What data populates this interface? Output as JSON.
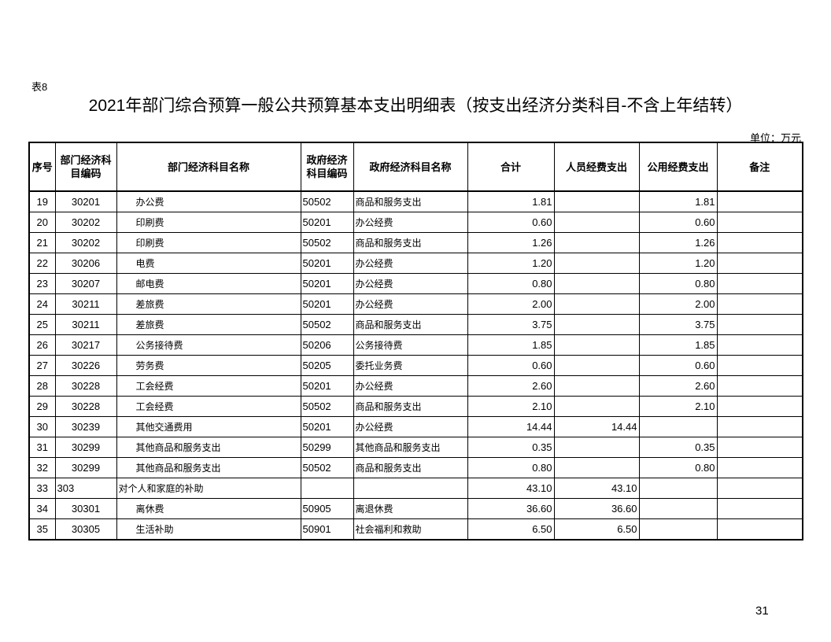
{
  "table_label": "表8",
  "title": "2021年部门综合预算一般公共预算基本支出明细表（按支出经济分类科目-不含上年结转）",
  "unit": "单位：万元",
  "headers": [
    "序号",
    "部门经济科目编码",
    "部门经济科目名称",
    "政府经济科目编码",
    "政府经济科目名称",
    "合计",
    "人员经费支出",
    "公用经费支出",
    "备注"
  ],
  "rows": [
    [
      "19",
      "30201",
      "办公费",
      "50502",
      "商品和服务支出",
      "1.81",
      "",
      "1.81",
      ""
    ],
    [
      "20",
      "30202",
      "印刷费",
      "50201",
      "办公经费",
      "0.60",
      "",
      "0.60",
      ""
    ],
    [
      "21",
      "30202",
      "印刷费",
      "50502",
      "商品和服务支出",
      "1.26",
      "",
      "1.26",
      ""
    ],
    [
      "22",
      "30206",
      "电费",
      "50201",
      "办公经费",
      "1.20",
      "",
      "1.20",
      ""
    ],
    [
      "23",
      "30207",
      "邮电费",
      "50201",
      "办公经费",
      "0.80",
      "",
      "0.80",
      ""
    ],
    [
      "24",
      "30211",
      "差旅费",
      "50201",
      "办公经费",
      "2.00",
      "",
      "2.00",
      ""
    ],
    [
      "25",
      "30211",
      "差旅费",
      "50502",
      "商品和服务支出",
      "3.75",
      "",
      "3.75",
      ""
    ],
    [
      "26",
      "30217",
      "公务接待费",
      "50206",
      "公务接待费",
      "1.85",
      "",
      "1.85",
      ""
    ],
    [
      "27",
      "30226",
      "劳务费",
      "50205",
      "委托业务费",
      "0.60",
      "",
      "0.60",
      ""
    ],
    [
      "28",
      "30228",
      "工会经费",
      "50201",
      "办公经费",
      "2.60",
      "",
      "2.60",
      ""
    ],
    [
      "29",
      "30228",
      "工会经费",
      "50502",
      "商品和服务支出",
      "2.10",
      "",
      "2.10",
      ""
    ],
    [
      "30",
      "30239",
      "其他交通费用",
      "50201",
      "办公经费",
      "14.44",
      "14.44",
      "",
      ""
    ],
    [
      "31",
      "30299",
      "其他商品和服务支出",
      "50299",
      "其他商品和服务支出",
      "0.35",
      "",
      "0.35",
      ""
    ],
    [
      "32",
      "30299",
      "其他商品和服务支出",
      "50502",
      "商品和服务支出",
      "0.80",
      "",
      "0.80",
      ""
    ],
    [
      "33",
      "303",
      "对个人和家庭的补助",
      "",
      "",
      "43.10",
      "43.10",
      "",
      ""
    ],
    [
      "34",
      "30301",
      "离休费",
      "50905",
      "离退休费",
      "36.60",
      "36.60",
      "",
      ""
    ],
    [
      "35",
      "30305",
      "生活补助",
      "50901",
      "社会福利和救助",
      "6.50",
      "6.50",
      "",
      ""
    ]
  ],
  "page_number": "31"
}
